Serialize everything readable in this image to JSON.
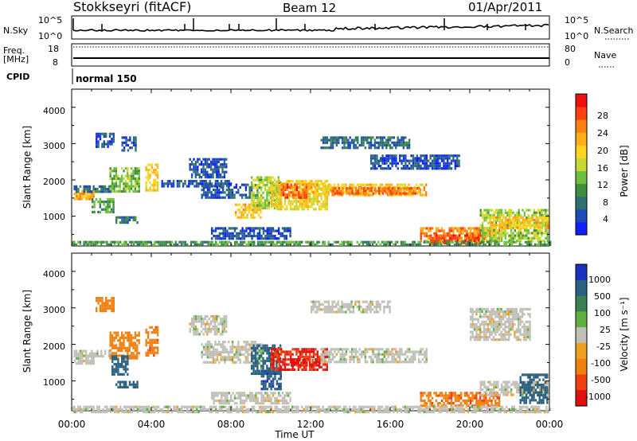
{
  "header": {
    "station": "Stokkseyri (fitACF)",
    "beam": "Beam 12",
    "date": "01/Apr/2011"
  },
  "strip": {
    "nsky_label": "N.Sky",
    "nsky_ticks": [
      "10^5",
      "10^0"
    ],
    "nsearch_label": "N.Search",
    "freq_label": "Freq.",
    "freq_unit": "[MHz]",
    "freq_ticks": [
      "18",
      "8"
    ],
    "nave_label": "Nave",
    "nave_ticks": [
      "80",
      "0"
    ],
    "cpid_label": "CPID",
    "mode_text": "normal 150"
  },
  "axes": {
    "ylabel": "Slant Range [km]",
    "yticks": [
      "1000",
      "2000",
      "3000",
      "4000"
    ],
    "xlabel": "Time UT",
    "xticks": [
      "00:00",
      "04:00",
      "08:00",
      "12:00",
      "16:00",
      "20:00",
      "00:00"
    ]
  },
  "colorbars": {
    "power": {
      "label": "Power [dB]",
      "ticks": [
        "4",
        "8",
        "12",
        "16",
        "20",
        "24",
        "28"
      ],
      "colors": [
        "#1020ff",
        "#1c4ab8",
        "#2f6f72",
        "#3f8f3f",
        "#6fbf3f",
        "#c8d832",
        "#ffd520",
        "#ffb018",
        "#ff8010",
        "#ff4010",
        "#f01010"
      ]
    },
    "velocity": {
      "label": "Velocity [m s⁻¹]",
      "ticks": [
        "1000",
        "500",
        "100",
        "25",
        "-25",
        "-100",
        "-500",
        "-1000"
      ],
      "colors": [
        "#1a30c0",
        "#2a6080",
        "#3a8050",
        "#60b040",
        "#c0c0b8",
        "#f0a020",
        "#f08010",
        "#f04010",
        "#e01010"
      ]
    }
  },
  "chart_data": {
    "type": "heatmap",
    "x_range_hours": [
      0,
      24
    ],
    "y_range_km": [
      180,
      4500
    ],
    "panels": [
      {
        "name": "power",
        "units": "dB",
        "features": [
          {
            "t0": 0.1,
            "t1": 1.1,
            "r0": 1500,
            "r1": 1720,
            "v": 24
          },
          {
            "t0": 0.1,
            "t1": 2.0,
            "r0": 1700,
            "r1": 1850,
            "v": 8
          },
          {
            "t0": 1.0,
            "t1": 2.1,
            "r0": 1100,
            "r1": 1500,
            "v": 12
          },
          {
            "t0": 1.9,
            "t1": 3.4,
            "r0": 1700,
            "r1": 2350,
            "v": 14
          },
          {
            "t0": 2.2,
            "t1": 3.3,
            "r0": 800,
            "r1": 1000,
            "v": 9
          },
          {
            "t0": 3.7,
            "t1": 4.3,
            "r0": 1700,
            "r1": 2450,
            "v": 20
          },
          {
            "t0": 2.5,
            "t1": 3.2,
            "r0": 2800,
            "r1": 3200,
            "v": 6
          },
          {
            "t0": 1.2,
            "t1": 2.1,
            "r0": 2900,
            "r1": 3300,
            "v": 6
          },
          {
            "t0": 5.9,
            "t1": 7.8,
            "r0": 2100,
            "r1": 2600,
            "v": 6
          },
          {
            "t0": 6.5,
            "t1": 9.0,
            "r0": 1500,
            "r1": 1900,
            "v": 6
          },
          {
            "t0": 8.2,
            "t1": 9.5,
            "r0": 950,
            "r1": 1350,
            "v": 22
          },
          {
            "t0": 9.0,
            "t1": 10.5,
            "r0": 1200,
            "r1": 2100,
            "v": 16
          },
          {
            "t0": 10.0,
            "t1": 12.8,
            "r0": 1200,
            "r1": 2000,
            "v": 20
          },
          {
            "t0": 10.5,
            "t1": 11.8,
            "r0": 1500,
            "r1": 1900,
            "v": 28
          },
          {
            "t0": 12.0,
            "t1": 17.8,
            "r0": 1600,
            "r1": 1900,
            "v": 22
          },
          {
            "t0": 13.0,
            "t1": 17.5,
            "r0": 1650,
            "r1": 1800,
            "v": 27
          },
          {
            "t0": 12.5,
            "t1": 17.0,
            "r0": 2900,
            "r1": 3200,
            "v": 8
          },
          {
            "t0": 15.0,
            "t1": 19.5,
            "r0": 2300,
            "r1": 2700,
            "v": 6
          },
          {
            "t0": 17.5,
            "t1": 21.5,
            "r0": 300,
            "r1": 700,
            "v": 26
          },
          {
            "t0": 18.0,
            "t1": 20.5,
            "r0": 250,
            "r1": 500,
            "v": 29
          },
          {
            "t0": 20.5,
            "t1": 23.9,
            "r0": 300,
            "r1": 1200,
            "v": 16
          },
          {
            "t0": 21.0,
            "t1": 23.9,
            "r0": 700,
            "r1": 1000,
            "v": 22
          },
          {
            "t0": 0.0,
            "t1": 24.0,
            "r0": 180,
            "r1": 320,
            "v": 12
          },
          {
            "t0": 7.0,
            "t1": 11.0,
            "r0": 400,
            "r1": 700,
            "v": 6
          },
          {
            "t0": 4.5,
            "t1": 8.0,
            "r0": 1850,
            "r1": 2000,
            "v": 6
          }
        ]
      },
      {
        "name": "velocity",
        "units": "m/s",
        "features": [
          {
            "t0": 0.1,
            "t1": 1.1,
            "r0": 1500,
            "r1": 1720,
            "v": 0
          },
          {
            "t0": 0.1,
            "t1": 2.0,
            "r0": 1700,
            "r1": 1850,
            "v": 0
          },
          {
            "t0": 1.9,
            "t1": 3.4,
            "r0": 1600,
            "r1": 2350,
            "v": -300
          },
          {
            "t0": 2.0,
            "t1": 2.8,
            "r0": 1200,
            "r1": 1700,
            "v": 200
          },
          {
            "t0": 2.2,
            "t1": 3.3,
            "r0": 800,
            "r1": 1000,
            "v": 300
          },
          {
            "t0": 3.7,
            "t1": 4.3,
            "r0": 1700,
            "r1": 2500,
            "v": -400
          },
          {
            "t0": 1.2,
            "t1": 2.1,
            "r0": 2900,
            "r1": 3300,
            "v": -300
          },
          {
            "t0": 5.9,
            "t1": 7.8,
            "r0": 2300,
            "r1": 2800,
            "v": 0
          },
          {
            "t0": 6.5,
            "t1": 9.5,
            "r0": 1500,
            "r1": 2100,
            "v": 0
          },
          {
            "t0": 9.0,
            "t1": 10.5,
            "r0": 1200,
            "r1": 2000,
            "v": 150
          },
          {
            "t0": 9.5,
            "t1": 10.5,
            "r0": 800,
            "r1": 1300,
            "v": 400
          },
          {
            "t0": 10.0,
            "t1": 12.8,
            "r0": 1300,
            "r1": 1900,
            "v": -900
          },
          {
            "t0": 11.0,
            "t1": 12.5,
            "r0": 1400,
            "r1": 1600,
            "v": -1000
          },
          {
            "t0": 12.5,
            "t1": 17.8,
            "r0": 1550,
            "r1": 1900,
            "v": 0
          },
          {
            "t0": 12.0,
            "t1": 16.0,
            "r0": 2900,
            "r1": 3200,
            "v": 0
          },
          {
            "t0": 17.5,
            "t1": 21.5,
            "r0": 300,
            "r1": 700,
            "v": -400
          },
          {
            "t0": 20.5,
            "t1": 23.9,
            "r0": 600,
            "r1": 1000,
            "v": 0
          },
          {
            "t0": 22.5,
            "t1": 23.9,
            "r0": 400,
            "r1": 1200,
            "v": 300
          },
          {
            "t0": 0.0,
            "t1": 24.0,
            "r0": 180,
            "r1": 320,
            "v": 0
          },
          {
            "t0": 7.0,
            "t1": 11.0,
            "r0": 400,
            "r1": 700,
            "v": 0
          },
          {
            "t0": 20.0,
            "t1": 23.0,
            "r0": 2100,
            "r1": 3000,
            "v": 0
          }
        ]
      }
    ]
  }
}
